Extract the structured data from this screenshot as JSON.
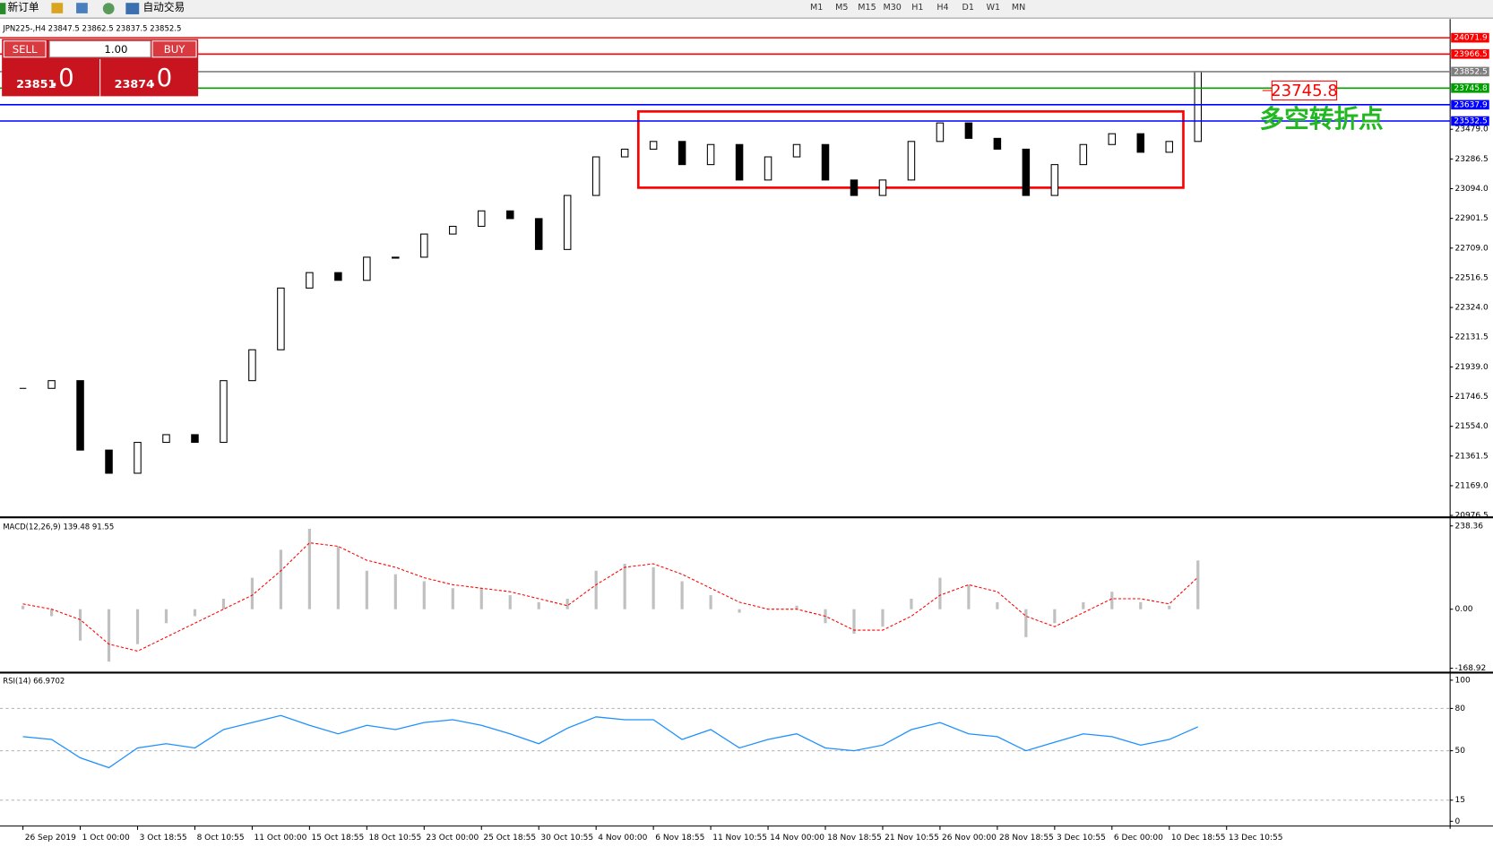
{
  "toolbar": {
    "new_order": "新订单",
    "auto_trading": "自动交易",
    "timeframes": [
      "M1",
      "M5",
      "M15",
      "M30",
      "H1",
      "H4",
      "D1",
      "W1",
      "MN"
    ]
  },
  "trade_panel": {
    "sell": "SELL",
    "buy": "BUY",
    "lots": "1.00",
    "sell_price": "23851",
    "sell_fraction": ".0",
    "buy_price": "23874",
    "buy_fraction": ".0"
  },
  "chart_data": [
    {
      "type": "candlestick",
      "title": "JPN225-,H4 23847.5 23862.5 23837.5 23852.5",
      "categories": [
        "26 Sep 2019",
        null,
        "1 Oct 00:00",
        null,
        "3 Oct 18:55",
        null,
        "8 Oct 10:55",
        null,
        "11 Oct 00:00",
        null,
        "15 Oct 18:55",
        null,
        "18 Oct 10:55",
        null,
        "23 Oct 00:00",
        null,
        "25 Oct 18:55",
        null,
        "30 Oct 10:55",
        null,
        "4 Nov 00:00",
        null,
        "6 Nov 18:55",
        null,
        "11 Nov 10:55",
        null,
        "14 Nov 00:00",
        null,
        "18 Nov 18:55",
        null,
        "21 Nov 10:55",
        null,
        "26 Nov 00:00",
        null,
        "28 Nov 18:55",
        null,
        "3 Dec 10:55",
        null,
        "6 Dec 00:00",
        null,
        "10 Dec 18:55",
        null,
        "13 Dec 10:55"
      ],
      "values": [
        21800,
        21850,
        21400,
        21250,
        21450,
        21500,
        21450,
        21850,
        22050,
        22450,
        22550,
        22500,
        22650,
        22650,
        22800,
        22850,
        22950,
        22900,
        22700,
        23050,
        23300,
        23350,
        23400,
        23250,
        23380,
        23150,
        23300,
        23380,
        23150,
        23050,
        23150,
        23400,
        23520,
        23420,
        23350,
        23050,
        23250,
        23380,
        23450,
        23330,
        23400,
        23852.5,
        null
      ],
      "xlim": [
        -0.8,
        49.8
      ],
      "ylim": [
        20964.1,
        24193.1
      ],
      "yticks": [
        {
          "value": 23479.0,
          "label": "23479.0"
        },
        23286.5,
        {
          "value": 23094.0,
          "label": "23094.0"
        },
        22901.5,
        {
          "value": 22709.0,
          "label": "22709.0"
        },
        22516.5,
        {
          "value": 22324.0,
          "label": "22324.0"
        },
        22131.5,
        {
          "value": 21939.0,
          "label": "21939.0"
        },
        21746.5,
        {
          "value": 21554.0,
          "label": "21554.0"
        },
        21361.5,
        {
          "value": 21169.0,
          "label": "21169.0"
        },
        20976.5
      ],
      "levels": [
        {
          "value": 24071.9,
          "color": "#ff0000"
        },
        {
          "value": 23966.5,
          "color": "#ff0000"
        },
        {
          "value": 23852.5,
          "color": "#808080"
        },
        {
          "value": 23745.8,
          "color": "#00a000"
        },
        {
          "value": 23637.9,
          "color": "#0000ff"
        },
        {
          "value": 23532.5,
          "color": "#0000ff"
        }
      ],
      "annotations": [
        "23745.8",
        "多空转折点"
      ]
    },
    {
      "type": "macd",
      "title": "MACD(12,26,9) 139.48 91.55",
      "values": [
        10,
        -20,
        -90,
        -150,
        -100,
        -40,
        -20,
        30,
        90,
        170,
        230,
        180,
        110,
        100,
        80,
        60,
        60,
        40,
        20,
        30,
        110,
        130,
        120,
        80,
        40,
        -10,
        0,
        10,
        -40,
        -70,
        -50,
        30,
        90,
        70,
        20,
        -80,
        -40,
        20,
        50,
        20,
        10,
        139.48,
        null
      ],
      "signal": [
        15,
        0,
        -30,
        -100,
        -120,
        -80,
        -40,
        0,
        40,
        110,
        190,
        180,
        140,
        120,
        90,
        70,
        60,
        50,
        30,
        10,
        70,
        120,
        130,
        100,
        60,
        20,
        0,
        0,
        -20,
        -60,
        -60,
        -20,
        40,
        70,
        50,
        -20,
        -50,
        -10,
        30,
        30,
        15,
        91.55,
        null
      ],
      "color": "#c0c0c0",
      "signal_color": "#ff0000",
      "ylim": [
        -178.9,
        254.7
      ],
      "yticks": [
        238.36,
        {
          "value": 0,
          "label": "0.00"
        },
        -168.92
      ]
    },
    {
      "type": "line",
      "title": "RSI(14) 66.9702",
      "values": [
        60,
        58,
        45,
        38,
        52,
        55,
        52,
        65,
        70,
        75,
        68,
        62,
        68,
        65,
        70,
        72,
        68,
        62,
        55,
        66,
        74,
        72,
        72,
        58,
        65,
        52,
        58,
        62,
        52,
        50,
        54,
        65,
        70,
        62,
        60,
        50,
        56,
        62,
        60,
        54,
        58,
        66.9702,
        null
      ],
      "color": "#1e90ff",
      "ylim": [
        -2,
        104
      ],
      "yticks": [
        100,
        80,
        50,
        15,
        0
      ],
      "grid_ticks": [
        80,
        50,
        15
      ]
    }
  ]
}
